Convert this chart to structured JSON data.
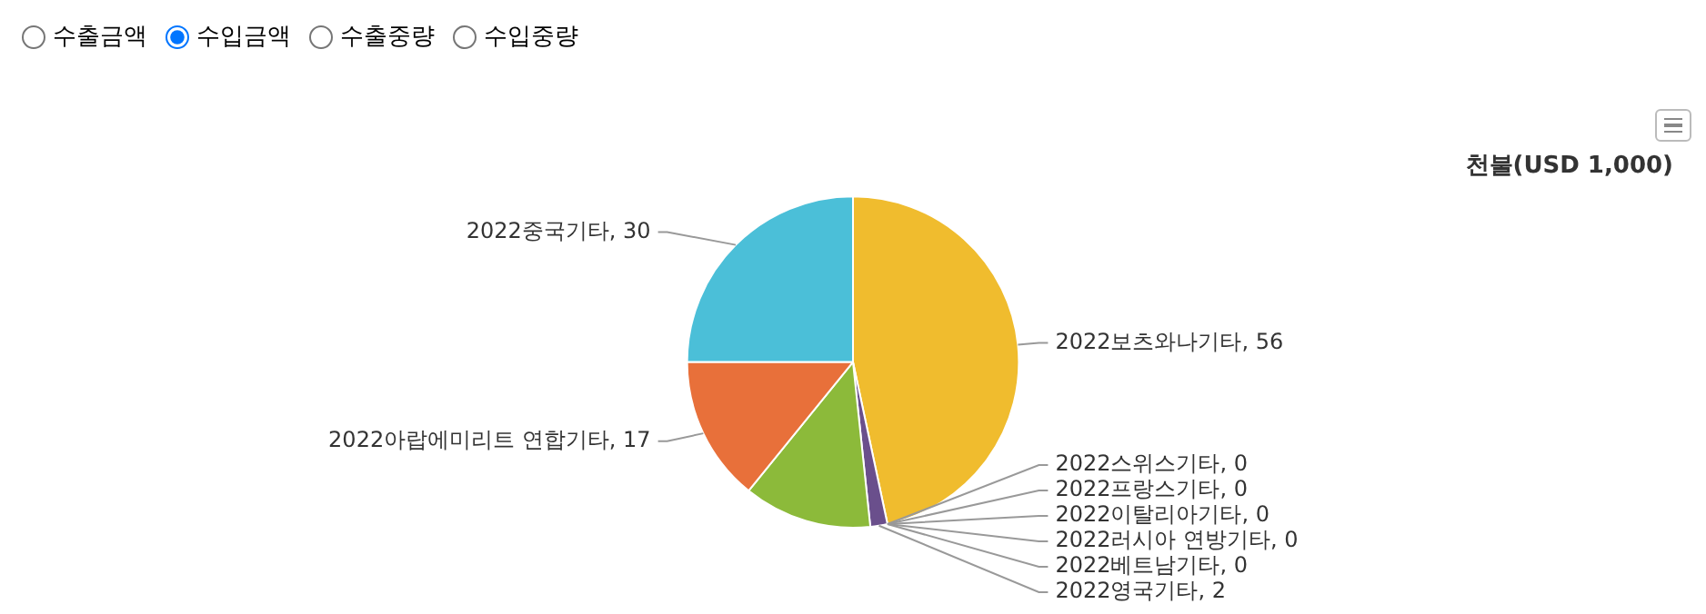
{
  "chart_data": {
    "type": "pie",
    "subtitle": "천불(USD 1,000)",
    "annotations": [
      "수출금액",
      "수입금액",
      "수출중량",
      "수입중량"
    ],
    "categories": [
      "2022보츠와나기타",
      "2022스위스기타",
      "2022프랑스기타",
      "2022이탈리아기타",
      "2022러시아 연방기타",
      "2022베트남기타",
      "2022영국기타",
      null,
      "2022아랍에미리트 연합기타",
      "2022중국기타"
    ],
    "values": [
      56,
      0,
      0,
      0,
      0,
      0,
      2,
      15,
      17,
      30
    ],
    "colors": [
      "#f0bc2e",
      "#c44e52",
      "#2f7ed8",
      "#8d4653",
      "#91e8e1",
      "#434348",
      "#6a4f8c",
      "#8cba3a",
      "#e8703a",
      "#4bbfd8"
    ],
    "value_labels": [
      ", 56",
      ", 0",
      ", 0",
      ", 0",
      ", 0",
      ", 0",
      ", 2",
      null,
      ", 17",
      ", 30"
    ],
    "legend": false
  }
}
